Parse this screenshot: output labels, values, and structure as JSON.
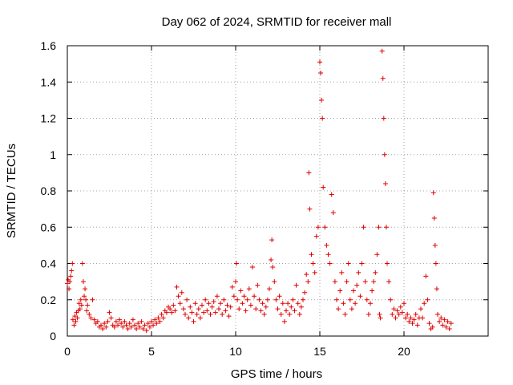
{
  "chart_data": {
    "type": "scatter",
    "title": "Day 062 of 2024, SRMTID for receiver mall",
    "xlabel": "GPS time / hours",
    "ylabel": "SRMTID / TECUs",
    "xlim": [
      0,
      25
    ],
    "ylim": [
      0,
      1.6
    ],
    "xticks": [
      0,
      5,
      10,
      15,
      20
    ],
    "xtick_labels": [
      "0",
      "5",
      "10",
      "15",
      "20"
    ],
    "yticks": [
      0,
      0.2,
      0.4,
      0.6,
      0.8,
      1.0,
      1.2,
      1.4,
      1.6
    ],
    "ytick_labels": [
      "0",
      "0.2",
      "0.4",
      "0.6",
      "0.8",
      "1",
      "1.2",
      "1.4",
      "1.6"
    ],
    "grid": true,
    "marker": "+",
    "series": [
      {
        "name": "SRMTID",
        "color": "#e00000",
        "points": [
          [
            0.0,
            0.29
          ],
          [
            0.05,
            0.31
          ],
          [
            0.1,
            0.26
          ],
          [
            0.15,
            0.3
          ],
          [
            0.2,
            0.33
          ],
          [
            0.25,
            0.36
          ],
          [
            0.3,
            0.4
          ],
          [
            0.33,
            0.09
          ],
          [
            0.4,
            0.06
          ],
          [
            0.45,
            0.11
          ],
          [
            0.5,
            0.08
          ],
          [
            0.55,
            0.13
          ],
          [
            0.6,
            0.1
          ],
          [
            0.65,
            0.14
          ],
          [
            0.7,
            0.18
          ],
          [
            0.75,
            0.15
          ],
          [
            0.8,
            0.2
          ],
          [
            0.85,
            0.17
          ],
          [
            0.9,
            0.4
          ],
          [
            0.95,
            0.3
          ],
          [
            1.0,
            0.22
          ],
          [
            1.05,
            0.26
          ],
          [
            1.1,
            0.2
          ],
          [
            1.15,
            0.14
          ],
          [
            1.2,
            0.17
          ],
          [
            1.3,
            0.12
          ],
          [
            1.4,
            0.1
          ],
          [
            1.5,
            0.2
          ],
          [
            1.6,
            0.09
          ],
          [
            1.7,
            0.07
          ],
          [
            1.8,
            0.08
          ],
          [
            1.9,
            0.05
          ],
          [
            2.0,
            0.06
          ],
          [
            2.1,
            0.04
          ],
          [
            2.2,
            0.07
          ],
          [
            2.3,
            0.05
          ],
          [
            2.4,
            0.08
          ],
          [
            2.5,
            0.13
          ],
          [
            2.6,
            0.1
          ],
          [
            2.7,
            0.06
          ],
          [
            2.8,
            0.05
          ],
          [
            2.9,
            0.08
          ],
          [
            3.0,
            0.06
          ],
          [
            3.1,
            0.09
          ],
          [
            3.2,
            0.07
          ],
          [
            3.3,
            0.05
          ],
          [
            3.4,
            0.08
          ],
          [
            3.5,
            0.06
          ],
          [
            3.6,
            0.04
          ],
          [
            3.7,
            0.07
          ],
          [
            3.8,
            0.05
          ],
          [
            3.9,
            0.09
          ],
          [
            4.0,
            0.06
          ],
          [
            4.1,
            0.04
          ],
          [
            4.2,
            0.07
          ],
          [
            4.3,
            0.05
          ],
          [
            4.4,
            0.08
          ],
          [
            4.5,
            0.04
          ],
          [
            4.6,
            0.06
          ],
          [
            4.7,
            0.03
          ],
          [
            4.8,
            0.07
          ],
          [
            4.9,
            0.05
          ],
          [
            5.0,
            0.08
          ],
          [
            5.1,
            0.06
          ],
          [
            5.2,
            0.09
          ],
          [
            5.3,
            0.07
          ],
          [
            5.4,
            0.1
          ],
          [
            5.5,
            0.08
          ],
          [
            5.6,
            0.12
          ],
          [
            5.7,
            0.1
          ],
          [
            5.8,
            0.14
          ],
          [
            5.9,
            0.13
          ],
          [
            6.0,
            0.16
          ],
          [
            6.1,
            0.15
          ],
          [
            6.2,
            0.13
          ],
          [
            6.3,
            0.17
          ],
          [
            6.4,
            0.14
          ],
          [
            6.5,
            0.27
          ],
          [
            6.6,
            0.22
          ],
          [
            6.7,
            0.18
          ],
          [
            6.8,
            0.24
          ],
          [
            6.9,
            0.15
          ],
          [
            7.0,
            0.12
          ],
          [
            7.1,
            0.2
          ],
          [
            7.2,
            0.1
          ],
          [
            7.3,
            0.16
          ],
          [
            7.4,
            0.13
          ],
          [
            7.5,
            0.08
          ],
          [
            7.6,
            0.18
          ],
          [
            7.7,
            0.12
          ],
          [
            7.8,
            0.15
          ],
          [
            7.9,
            0.1
          ],
          [
            8.0,
            0.17
          ],
          [
            8.1,
            0.13
          ],
          [
            8.2,
            0.2
          ],
          [
            8.3,
            0.14
          ],
          [
            8.4,
            0.18
          ],
          [
            8.5,
            0.12
          ],
          [
            8.6,
            0.16
          ],
          [
            8.7,
            0.19
          ],
          [
            8.8,
            0.13
          ],
          [
            8.9,
            0.22
          ],
          [
            9.0,
            0.15
          ],
          [
            9.1,
            0.18
          ],
          [
            9.2,
            0.12
          ],
          [
            9.3,
            0.2
          ],
          [
            9.4,
            0.14
          ],
          [
            9.5,
            0.17
          ],
          [
            9.6,
            0.11
          ],
          [
            9.7,
            0.16
          ],
          [
            9.8,
            0.27
          ],
          [
            9.9,
            0.22
          ],
          [
            10.0,
            0.3
          ],
          [
            10.05,
            0.4
          ],
          [
            10.1,
            0.2
          ],
          [
            10.2,
            0.15
          ],
          [
            10.3,
            0.25
          ],
          [
            10.4,
            0.18
          ],
          [
            10.5,
            0.22
          ],
          [
            10.6,
            0.14
          ],
          [
            10.7,
            0.2
          ],
          [
            10.8,
            0.26
          ],
          [
            10.9,
            0.17
          ],
          [
            11.0,
            0.38
          ],
          [
            11.1,
            0.22
          ],
          [
            11.2,
            0.15
          ],
          [
            11.3,
            0.28
          ],
          [
            11.4,
            0.2
          ],
          [
            11.5,
            0.14
          ],
          [
            11.6,
            0.18
          ],
          [
            11.7,
            0.12
          ],
          [
            11.8,
            0.16
          ],
          [
            11.9,
            0.2
          ],
          [
            12.0,
            0.26
          ],
          [
            12.1,
            0.42
          ],
          [
            12.15,
            0.53
          ],
          [
            12.2,
            0.38
          ],
          [
            12.3,
            0.3
          ],
          [
            12.4,
            0.2
          ],
          [
            12.5,
            0.15
          ],
          [
            12.6,
            0.22
          ],
          [
            12.7,
            0.12
          ],
          [
            12.8,
            0.18
          ],
          [
            12.9,
            0.08
          ],
          [
            13.0,
            0.14
          ],
          [
            13.1,
            0.18
          ],
          [
            13.2,
            0.12
          ],
          [
            13.3,
            0.16
          ],
          [
            13.4,
            0.2
          ],
          [
            13.5,
            0.14
          ],
          [
            13.6,
            0.28
          ],
          [
            13.7,
            0.18
          ],
          [
            13.8,
            0.12
          ],
          [
            13.9,
            0.16
          ],
          [
            14.0,
            0.2
          ],
          [
            14.1,
            0.24
          ],
          [
            14.2,
            0.34
          ],
          [
            14.3,
            0.3
          ],
          [
            14.35,
            0.9
          ],
          [
            14.4,
            0.7
          ],
          [
            14.5,
            0.45
          ],
          [
            14.6,
            0.4
          ],
          [
            14.7,
            0.35
          ],
          [
            14.8,
            0.55
          ],
          [
            14.9,
            0.6
          ],
          [
            15.0,
            1.51
          ],
          [
            15.05,
            1.45
          ],
          [
            15.1,
            1.3
          ],
          [
            15.15,
            1.2
          ],
          [
            15.2,
            0.82
          ],
          [
            15.3,
            0.6
          ],
          [
            15.4,
            0.5
          ],
          [
            15.5,
            0.45
          ],
          [
            15.6,
            0.4
          ],
          [
            15.7,
            0.78
          ],
          [
            15.8,
            0.68
          ],
          [
            15.9,
            0.3
          ],
          [
            16.0,
            0.2
          ],
          [
            16.1,
            0.15
          ],
          [
            16.2,
            0.25
          ],
          [
            16.3,
            0.35
          ],
          [
            16.4,
            0.18
          ],
          [
            16.5,
            0.12
          ],
          [
            16.6,
            0.3
          ],
          [
            16.7,
            0.4
          ],
          [
            16.8,
            0.2
          ],
          [
            16.9,
            0.15
          ],
          [
            17.0,
            0.25
          ],
          [
            17.1,
            0.18
          ],
          [
            17.2,
            0.28
          ],
          [
            17.3,
            0.35
          ],
          [
            17.4,
            0.22
          ],
          [
            17.5,
            0.4
          ],
          [
            17.6,
            0.6
          ],
          [
            17.7,
            0.3
          ],
          [
            17.8,
            0.2
          ],
          [
            17.9,
            0.12
          ],
          [
            18.0,
            0.18
          ],
          [
            18.1,
            0.25
          ],
          [
            18.2,
            0.3
          ],
          [
            18.3,
            0.35
          ],
          [
            18.4,
            0.45
          ],
          [
            18.5,
            0.6
          ],
          [
            18.55,
            0.12
          ],
          [
            18.6,
            0.1
          ],
          [
            18.7,
            1.57
          ],
          [
            18.75,
            1.42
          ],
          [
            18.8,
            1.2
          ],
          [
            18.85,
            1.0
          ],
          [
            18.9,
            0.84
          ],
          [
            18.95,
            0.6
          ],
          [
            19.0,
            0.4
          ],
          [
            19.1,
            0.3
          ],
          [
            19.2,
            0.2
          ],
          [
            19.3,
            0.12
          ],
          [
            19.4,
            0.15
          ],
          [
            19.5,
            0.1
          ],
          [
            19.6,
            0.14
          ],
          [
            19.7,
            0.12
          ],
          [
            19.8,
            0.16
          ],
          [
            19.9,
            0.13
          ],
          [
            20.0,
            0.18
          ],
          [
            20.1,
            0.1
          ],
          [
            20.2,
            0.12
          ],
          [
            20.3,
            0.08
          ],
          [
            20.4,
            0.1
          ],
          [
            20.5,
            0.07
          ],
          [
            20.6,
            0.09
          ],
          [
            20.7,
            0.12
          ],
          [
            20.8,
            0.06
          ],
          [
            20.9,
            0.1
          ],
          [
            21.0,
            0.15
          ],
          [
            21.1,
            0.1
          ],
          [
            21.2,
            0.18
          ],
          [
            21.3,
            0.33
          ],
          [
            21.4,
            0.2
          ],
          [
            21.5,
            0.07
          ],
          [
            21.6,
            0.04
          ],
          [
            21.7,
            0.05
          ],
          [
            21.75,
            0.79
          ],
          [
            21.8,
            0.65
          ],
          [
            21.85,
            0.5
          ],
          [
            21.9,
            0.4
          ],
          [
            21.95,
            0.26
          ],
          [
            22.0,
            0.12
          ],
          [
            22.1,
            0.08
          ],
          [
            22.2,
            0.1
          ],
          [
            22.3,
            0.06
          ],
          [
            22.4,
            0.09
          ],
          [
            22.5,
            0.05
          ],
          [
            22.6,
            0.08
          ],
          [
            22.7,
            0.04
          ],
          [
            22.8,
            0.07
          ]
        ]
      }
    ]
  }
}
